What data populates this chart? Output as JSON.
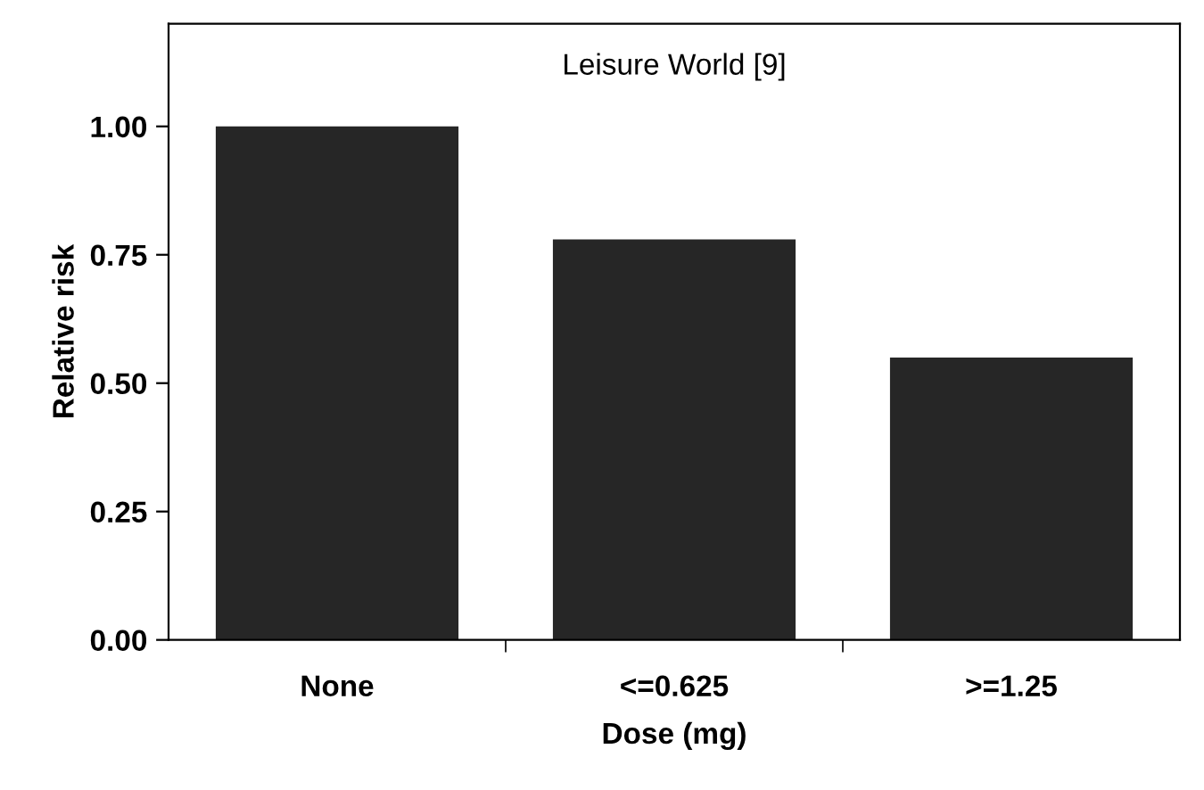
{
  "chart_data": {
    "type": "bar",
    "title": "Leisure World [9]",
    "xlabel": "Dose (mg)",
    "ylabel": "Relative risk",
    "categories": [
      "None",
      "<=0.625",
      ">=1.25"
    ],
    "values": [
      1.0,
      0.78,
      0.55
    ],
    "color": "#262626",
    "ylim": [
      0,
      1.2
    ],
    "yticks": [
      {
        "value": 0,
        "label": "0.00"
      },
      {
        "value": 0.25,
        "label": "0.25"
      },
      {
        "value": 0.5,
        "label": "0.50"
      },
      {
        "value": 0.75,
        "label": "0.75"
      },
      {
        "value": 1.0,
        "label": "1.00"
      }
    ],
    "grid": false,
    "legend": false
  }
}
